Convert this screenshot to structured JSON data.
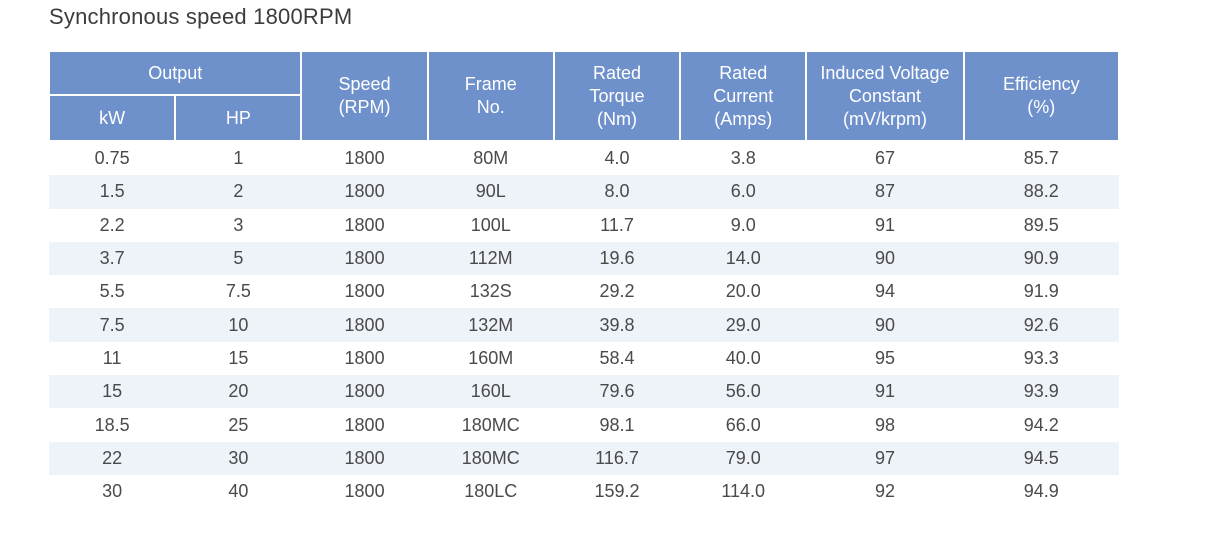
{
  "title": "Synchronous speed 1800RPM",
  "header": {
    "output": "Output",
    "kw": "kW",
    "hp": "HP",
    "speed": "Speed\n(RPM)",
    "frame": "Frame\nNo.",
    "torque": "Rated\nTorque\n(Nm)",
    "current": "Rated\nCurrent\n(Amps)",
    "voltage": "Induced Voltage\nConstant\n(mV/krpm)",
    "efficiency": "Efficiency\n(%)"
  },
  "rows": [
    [
      "0.75",
      "1",
      "1800",
      "80M",
      "4.0",
      "3.8",
      "67",
      "85.7"
    ],
    [
      "1.5",
      "2",
      "1800",
      "90L",
      "8.0",
      "6.0",
      "87",
      "88.2"
    ],
    [
      "2.2",
      "3",
      "1800",
      "100L",
      "11.7",
      "9.0",
      "91",
      "89.5"
    ],
    [
      "3.7",
      "5",
      "1800",
      "112M",
      "19.6",
      "14.0",
      "90",
      "90.9"
    ],
    [
      "5.5",
      "7.5",
      "1800",
      "132S",
      "29.2",
      "20.0",
      "94",
      "91.9"
    ],
    [
      "7.5",
      "10",
      "1800",
      "132M",
      "39.8",
      "29.0",
      "90",
      "92.6"
    ],
    [
      "11",
      "15",
      "1800",
      "160M",
      "58.4",
      "40.0",
      "95",
      "93.3"
    ],
    [
      "15",
      "20",
      "1800",
      "160L",
      "79.6",
      "56.0",
      "91",
      "93.9"
    ],
    [
      "18.5",
      "25",
      "1800",
      "180MC",
      "98.1",
      "66.0",
      "98",
      "94.2"
    ],
    [
      "22",
      "30",
      "1800",
      "180MC",
      "116.7",
      "79.0",
      "97",
      "94.5"
    ],
    [
      "30",
      "40",
      "1800",
      "180LC",
      "159.2",
      "114.0",
      "92",
      "94.9"
    ]
  ]
}
